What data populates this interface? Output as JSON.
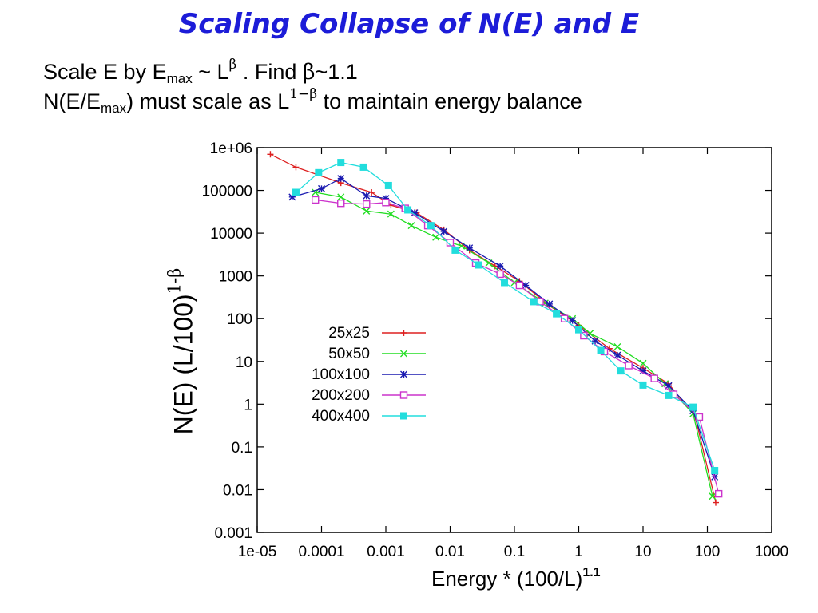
{
  "slide": {
    "title": "Scaling Collapse of N(E) and E",
    "line1": {
      "part1": "Scale E by E",
      "sub": "max",
      "part2": " ~ L",
      "sup": "β",
      "part3": " .   Find ",
      "beta": "β",
      "part4": "~1.1"
    },
    "line2": {
      "part1": "N(E/E",
      "sub": "max",
      "part2": ") must scale as L",
      "sup": "1−β",
      "part3": " to maintain energy balance"
    }
  },
  "chart_data": {
    "type": "line",
    "x_scale": "log",
    "y_scale": "log",
    "xlim": [
      1e-05,
      1000
    ],
    "ylim": [
      0.001,
      1000000
    ],
    "xlabel": {
      "text": "Energy * (100/L)",
      "sup": "1.1"
    },
    "ylabel": {
      "text": "N(E)  (L/100)",
      "sup": "1-β"
    },
    "x_ticks": [
      "1e-05",
      "0.0001",
      "0.001",
      "0.01",
      "0.1",
      "1",
      "10",
      "100",
      "1000"
    ],
    "y_ticks": [
      "1e+06",
      "100000",
      "10000",
      "1000",
      "100",
      "10",
      "1",
      "0.1",
      "0.01",
      "0.001"
    ],
    "grid": false,
    "legend_position": "center-left",
    "series": [
      {
        "name": "25x25",
        "color": "#dd2020",
        "marker": "plus",
        "x": [
          1.6e-05,
          4e-05,
          0.0002,
          0.0006,
          0.0012,
          0.003,
          0.008,
          0.02,
          0.05,
          0.12,
          0.35,
          1,
          3,
          10,
          25,
          65,
          135
        ],
        "y": [
          700000,
          350000,
          150000,
          90000,
          45000,
          30000,
          12000,
          4000,
          1700,
          750,
          200,
          70,
          20,
          7,
          3,
          0.5,
          0.005
        ]
      },
      {
        "name": "50x50",
        "color": "#22dd22",
        "marker": "x",
        "x": [
          8e-05,
          0.0002,
          0.0005,
          0.0012,
          0.0025,
          0.006,
          0.015,
          0.04,
          0.1,
          0.3,
          0.8,
          1.5,
          4,
          10,
          22,
          60,
          120
        ],
        "y": [
          90000,
          70000,
          33000,
          28000,
          15000,
          8000,
          5000,
          2000,
          700,
          230,
          100,
          45,
          22,
          9,
          3,
          0.6,
          0.007
        ]
      },
      {
        "name": "100x100",
        "color": "#1a1ab0",
        "marker": "star",
        "x": [
          3.5e-05,
          0.0001,
          0.0002,
          0.0005,
          0.001,
          0.0028,
          0.008,
          0.02,
          0.06,
          0.15,
          0.35,
          0.8,
          1.8,
          4,
          10,
          25,
          60,
          130
        ],
        "y": [
          70000,
          110000,
          190000,
          75000,
          65000,
          30000,
          11000,
          4500,
          1700,
          600,
          220,
          90,
          30,
          14,
          6,
          2.7,
          0.7,
          0.02
        ]
      },
      {
        "name": "200x200",
        "color": "#cc33cc",
        "marker": "square-open",
        "x": [
          8e-05,
          0.0002,
          0.0005,
          0.001,
          0.002,
          0.0045,
          0.01,
          0.025,
          0.06,
          0.12,
          0.25,
          0.6,
          1.2,
          2.5,
          6,
          15,
          30,
          75,
          150
        ],
        "y": [
          60000,
          50000,
          48000,
          52000,
          38000,
          15000,
          6000,
          2000,
          1100,
          600,
          250,
          100,
          40,
          17,
          8,
          4,
          1.7,
          0.5,
          0.008
        ]
      },
      {
        "name": "400x400",
        "color": "#22dddd",
        "marker": "square-filled",
        "x": [
          4e-05,
          9e-05,
          0.0002,
          0.00045,
          0.0011,
          0.0022,
          0.005,
          0.012,
          0.028,
          0.07,
          0.2,
          0.45,
          1,
          2.2,
          4.5,
          10,
          25,
          60,
          130
        ],
        "y": [
          90000,
          260000,
          450000,
          350000,
          130000,
          35000,
          15000,
          4000,
          1800,
          700,
          250,
          130,
          55,
          18,
          6,
          2.8,
          1.6,
          0.85,
          0.028
        ]
      }
    ]
  }
}
